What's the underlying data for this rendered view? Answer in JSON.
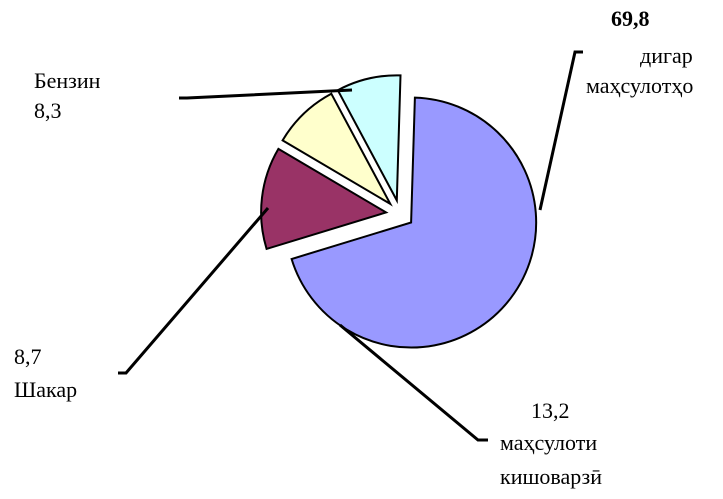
{
  "chart_data": {
    "type": "pie",
    "title": "",
    "slices": [
      {
        "key": "other",
        "value": 69.8,
        "value_text": "69,8",
        "label": "дигар маҳсулотҳо",
        "label_lines": [
          "дигар",
          "маҳсулотҳо"
        ],
        "color": "#9999ff"
      },
      {
        "key": "agri",
        "value": 13.2,
        "value_text": "13,2",
        "label": "маҳсулоти кишоварзӣ",
        "label_lines": [
          "маҳсулоти",
          "кишоварзӣ"
        ],
        "color": "#993366"
      },
      {
        "key": "sugar",
        "value": 8.7,
        "value_text": "8,7",
        "label": "Шакар",
        "label_lines": [
          "Шакар"
        ],
        "color": "#ffffcc"
      },
      {
        "key": "petrol",
        "value": 8.3,
        "value_text": "8,3",
        "label": "Бензин",
        "label_lines": [
          "Бензин"
        ],
        "color": "#ccffff"
      }
    ],
    "exploded": true,
    "legend": "none"
  }
}
